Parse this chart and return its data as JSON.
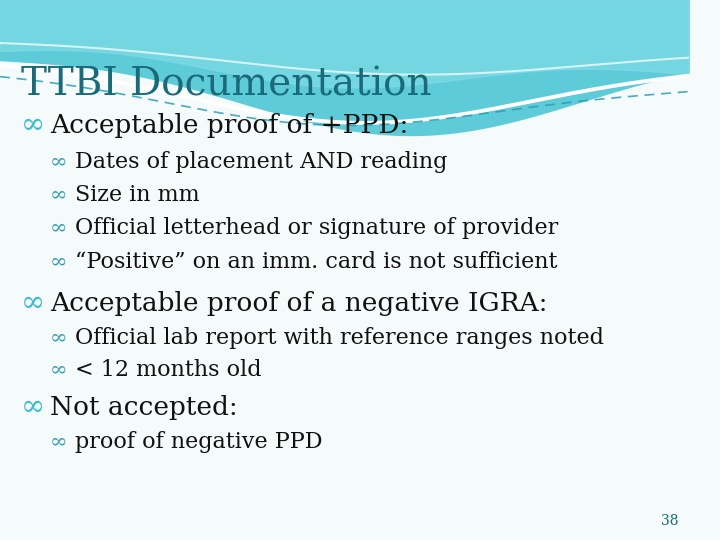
{
  "title": "TTBI Documentation",
  "title_color": "#1a6b7a",
  "title_fontsize": 28,
  "bg_color": "#f5fafa",
  "bullet_color_l1": "#3bbcd0",
  "bullet_color_l2": "#3a9db8",
  "text_color": "#111111",
  "page_number": "38",
  "items": [
    {
      "level": 1,
      "text": "Acceptable proof of +PPD:",
      "fontsize": 19,
      "bold": false
    },
    {
      "level": 2,
      "text": "Dates of placement AND reading",
      "fontsize": 16,
      "bold": false
    },
    {
      "level": 2,
      "text": "Size in mm",
      "fontsize": 16,
      "bold": false
    },
    {
      "level": 2,
      "text": "Official letterhead or signature of provider",
      "fontsize": 16,
      "bold": false
    },
    {
      "level": 2,
      "text": "“Positive” on an imm. card is not sufficient",
      "fontsize": 16,
      "bold": false
    },
    {
      "level": 1,
      "text": "Acceptable proof of a negative IGRA:",
      "fontsize": 19,
      "bold": false
    },
    {
      "level": 2,
      "text": "Official lab report with reference ranges noted",
      "fontsize": 16,
      "bold": false
    },
    {
      "level": 2,
      "text": "< 12 months old",
      "fontsize": 16,
      "bold": false
    },
    {
      "level": 1,
      "text": "Not accepted:",
      "fontsize": 19,
      "bold": false
    },
    {
      "level": 2,
      "text": "proof of negative PPD",
      "fontsize": 16,
      "bold": false
    }
  ],
  "wave_teal_dark": "#45c5d5",
  "wave_teal_light": "#80dce8",
  "wave_white_line": "#ffffff",
  "wave_teal_line": "#2a9db5"
}
